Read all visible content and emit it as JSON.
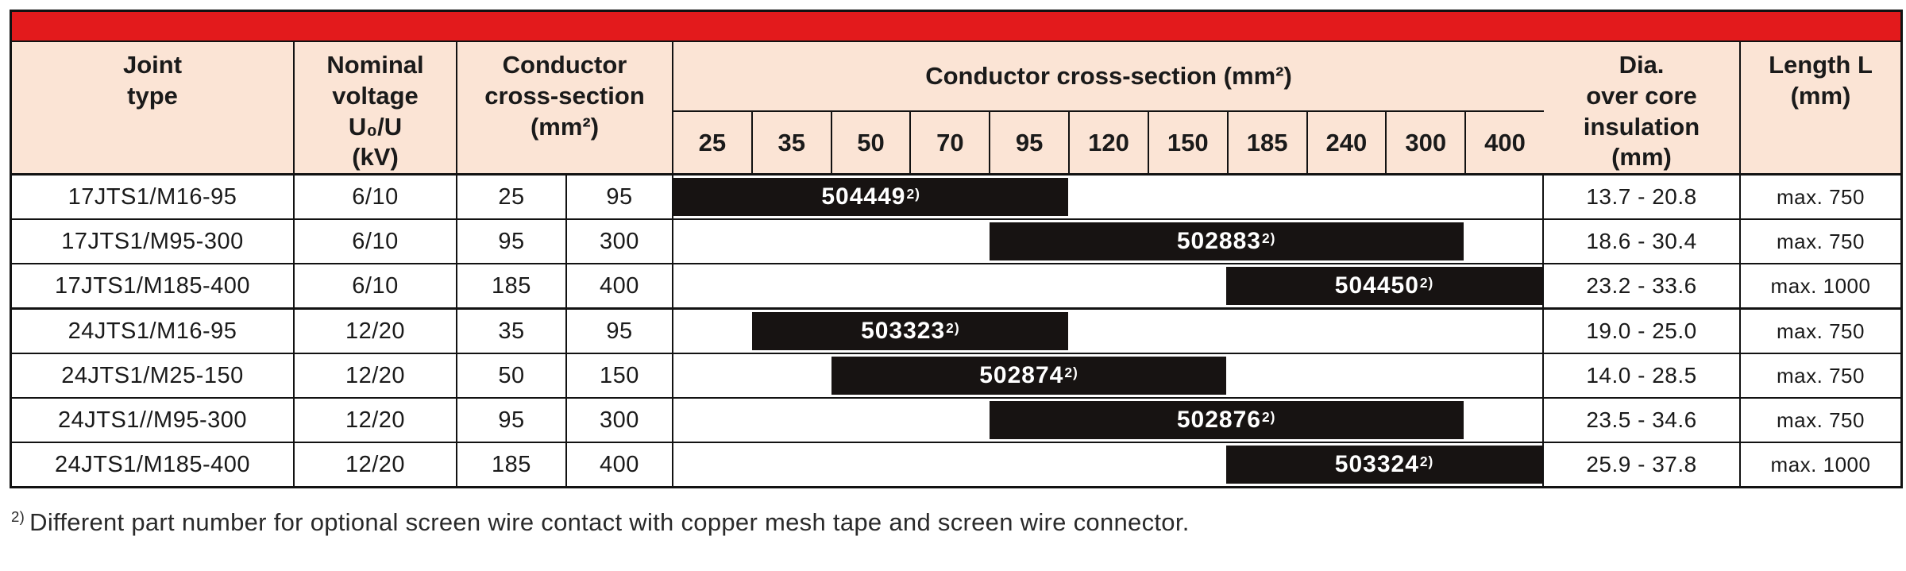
{
  "table": {
    "headers": {
      "joint_type": "Joint\ntype",
      "nominal_voltage": "Nominal\nvoltage\nU₀/U\n(kV)",
      "conductor_cs": "Conductor\ncross-section\n(mm²)",
      "cs_span_title": "Conductor cross-section (mm²)",
      "cs_sizes": [
        "25",
        "35",
        "50",
        "70",
        "95",
        "120",
        "150",
        "185",
        "240",
        "300",
        "400"
      ],
      "dia": "Dia.\nover core\ninsulation\n(mm)",
      "length": "Length L\n(mm)"
    },
    "rows": [
      {
        "joint_type": "17JTS1/M16-95",
        "voltage": "6/10",
        "cs_min": "25",
        "cs_max": "95",
        "part_number": "504449",
        "footnote_ref": "2)",
        "bar_from": "25",
        "bar_to": "95",
        "dia": "13.7 - 20.8",
        "length": "max. 750"
      },
      {
        "joint_type": "17JTS1/M95-300",
        "voltage": "6/10",
        "cs_min": "95",
        "cs_max": "300",
        "part_number": "502883",
        "footnote_ref": "2)",
        "bar_from": "95",
        "bar_to": "300",
        "dia": "18.6 - 30.4",
        "length": "max. 750"
      },
      {
        "joint_type": "17JTS1/M185-400",
        "voltage": "6/10",
        "cs_min": "185",
        "cs_max": "400",
        "part_number": "504450",
        "footnote_ref": "2)",
        "bar_from": "185",
        "bar_to": "400",
        "dia": "23.2 - 33.6",
        "length": "max. 1000"
      },
      {
        "joint_type": "24JTS1/M16-95",
        "voltage": "12/20",
        "cs_min": "35",
        "cs_max": "95",
        "part_number": "503323",
        "footnote_ref": "2)",
        "bar_from": "35",
        "bar_to": "95",
        "dia": "19.0 - 25.0",
        "length": "max. 750"
      },
      {
        "joint_type": "24JTS1/M25-150",
        "voltage": "12/20",
        "cs_min": "50",
        "cs_max": "150",
        "part_number": "502874",
        "footnote_ref": "2)",
        "bar_from": "50",
        "bar_to": "150",
        "dia": "14.0 - 28.5",
        "length": "max. 750"
      },
      {
        "joint_type": "24JTS1//M95-300",
        "voltage": "12/20",
        "cs_min": "95",
        "cs_max": "300",
        "part_number": "502876",
        "footnote_ref": "2)",
        "bar_from": "95",
        "bar_to": "300",
        "dia": "23.5 - 34.6",
        "length": "max. 750"
      },
      {
        "joint_type": "24JTS1/M185-400",
        "voltage": "12/20",
        "cs_min": "185",
        "cs_max": "400",
        "part_number": "503324",
        "footnote_ref": "2)",
        "bar_from": "185",
        "bar_to": "400",
        "dia": "25.9 - 37.8",
        "length": "max. 1000"
      }
    ]
  },
  "footnote": {
    "ref": "2)",
    "text": "Different part number for optional screen wire contact with copper mesh tape and screen wire connector."
  },
  "colors": {
    "accent_red": "#e31a1c",
    "header_bg": "#fbe4d5",
    "bar_black": "#171312",
    "border": "#121212",
    "text": "#1a1a1a"
  }
}
